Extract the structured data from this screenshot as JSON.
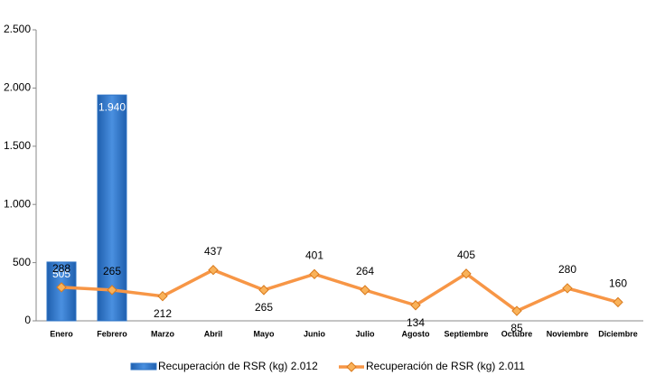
{
  "chart_data": {
    "type": "bar-line",
    "categories": [
      "Enero",
      "Febrero",
      "Marzo",
      "Abril",
      "Mayo",
      "Junio",
      "Julio",
      "Agosto",
      "Septiembre",
      "Octubre",
      "Noviembre",
      "Diciembre"
    ],
    "series": [
      {
        "name": "Recuperación de RSR (kg) 2.012",
        "type": "bar",
        "color": "#2f74c6",
        "values": [
          505,
          1940,
          null,
          null,
          null,
          null,
          null,
          null,
          null,
          null,
          null,
          null
        ],
        "value_labels": [
          "505",
          "1.940",
          null,
          null,
          null,
          null,
          null,
          null,
          null,
          null,
          null,
          null
        ]
      },
      {
        "name": "Recuperación de RSR (kg) 2.011",
        "type": "line",
        "color": "#f79646",
        "values": [
          288,
          265,
          212,
          437,
          265,
          401,
          264,
          134,
          405,
          85,
          280,
          160
        ]
      }
    ],
    "ylim": [
      0,
      2500
    ],
    "yticks": [
      0,
      500,
      {
        "value": 1000,
        "label": "1.000"
      },
      {
        "value": 1500,
        "label": "1.500"
      },
      {
        "value": 2000,
        "label": "2.000"
      },
      {
        "value": 2500,
        "label": "2.500"
      }
    ],
    "grid": false,
    "legend": "bottom"
  }
}
